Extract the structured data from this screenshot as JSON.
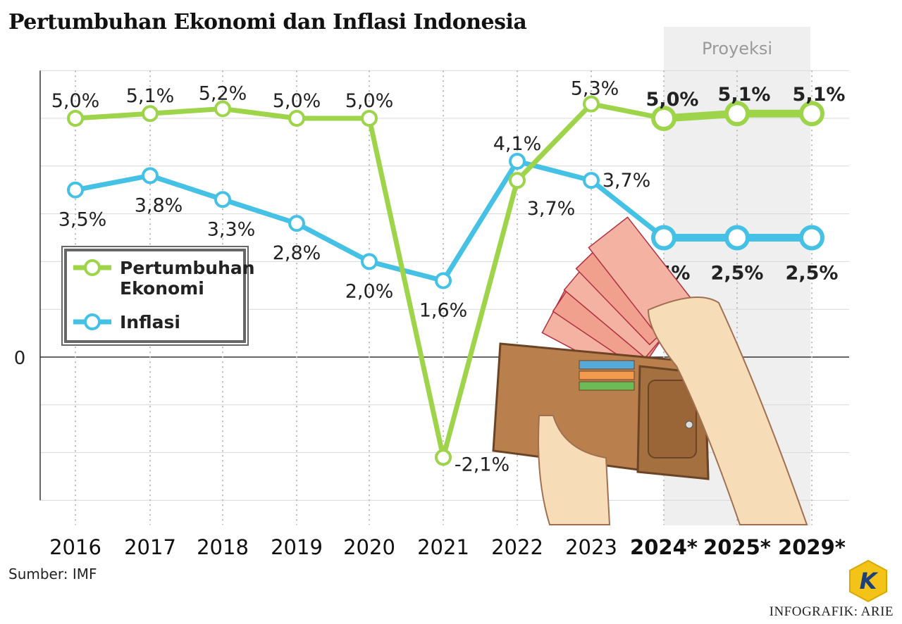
{
  "title": "Pertumbuhan Ekonomi dan Inflasi Indonesia",
  "source": "Sumber: IMF",
  "credit": "INFOGRAFIK: ARIE",
  "logo_letter": "K",
  "chart_data": {
    "type": "line",
    "title": "Pertumbuhan Ekonomi dan Inflasi Indonesia",
    "categories": [
      "2016",
      "2017",
      "2018",
      "2019",
      "2020",
      "2021",
      "2022",
      "2023",
      "2024*",
      "2025*",
      "2029*"
    ],
    "projection_label": "Proyeksi",
    "projection_categories": [
      "2024*",
      "2025*",
      "2029*"
    ],
    "ylim": [
      -3,
      6
    ],
    "zero_label": "0",
    "grid": true,
    "legend_position": "left-middle",
    "series": [
      {
        "name": "Pertumbuhan Ekonomi",
        "color": "#9ed44a",
        "values": [
          5.0,
          5.1,
          5.2,
          5.0,
          5.0,
          -2.1,
          3.7,
          5.3,
          5.0,
          5.1,
          5.1
        ],
        "labels": [
          "5,0%",
          "5,1%",
          "5,2%",
          "5,0%",
          "5,0%",
          "-2,1%",
          "3,7%",
          "5,3%",
          "5,0%",
          "5,1%",
          "5,1%"
        ]
      },
      {
        "name": "Inflasi",
        "color": "#45c1e6",
        "values": [
          3.5,
          3.8,
          3.3,
          2.8,
          2.0,
          1.6,
          4.1,
          3.7,
          2.5,
          2.5,
          2.5
        ],
        "labels": [
          "3,5%",
          "3,8%",
          "3,3%",
          "2,8%",
          "2,0%",
          "1,6%",
          "4,1%",
          "3,7%",
          "2,5%",
          "2,5%",
          "2,5%"
        ]
      }
    ],
    "legend": [
      "Pertumbuhan\nEkonomi",
      "Inflasi"
    ]
  }
}
